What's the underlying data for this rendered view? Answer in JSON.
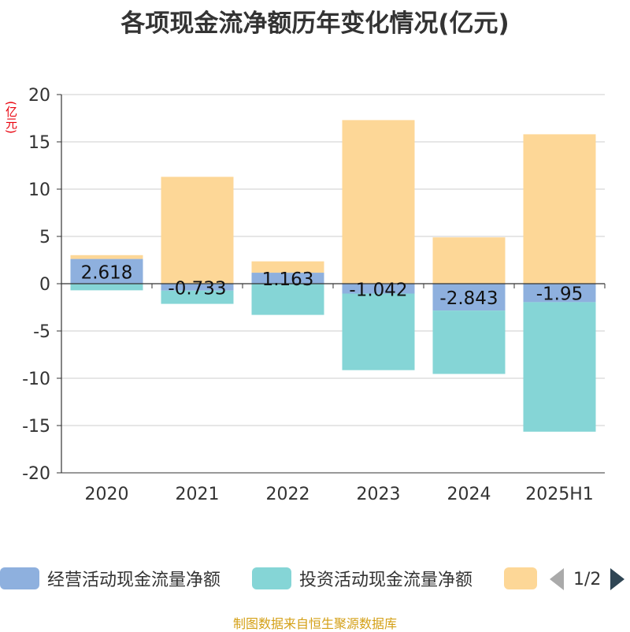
{
  "title": "各项现金流净额历年变化情况(亿元)",
  "unit_label": "(亿元)",
  "footer": "制图数据来自恒生聚源数据库",
  "pager": {
    "text": "1/2"
  },
  "colors": {
    "operating": "#8eb0de",
    "investing": "#85d5d6",
    "financing": "#fdd797",
    "grid": "#cccccc",
    "axis": "#333333"
  },
  "chart_data": {
    "type": "bar",
    "stacked": true,
    "categories": [
      "2020",
      "2021",
      "2022",
      "2023",
      "2024",
      "2025H1"
    ],
    "ylim": [
      -20,
      20
    ],
    "yticks": [
      20,
      15,
      10,
      5,
      0,
      -5,
      -10,
      -15,
      -20
    ],
    "grid": true,
    "legend_position": "bottom",
    "series": [
      {
        "name": "经营活动现金流量净额",
        "values": [
          2.618,
          -0.733,
          1.163,
          -1.042,
          -2.843,
          -1.95
        ],
        "labels": [
          "2.618",
          "-0.733",
          "1.163",
          "-1.042",
          "-2.843",
          "-1.95"
        ]
      },
      {
        "name": "投资活动现金流量净额",
        "values": [
          -0.7,
          -1.4,
          -3.3,
          -8.1,
          -6.7,
          -13.7
        ]
      },
      {
        "name": "",
        "values": [
          0.4,
          11.3,
          1.2,
          17.3,
          4.9,
          15.8
        ]
      }
    ]
  }
}
